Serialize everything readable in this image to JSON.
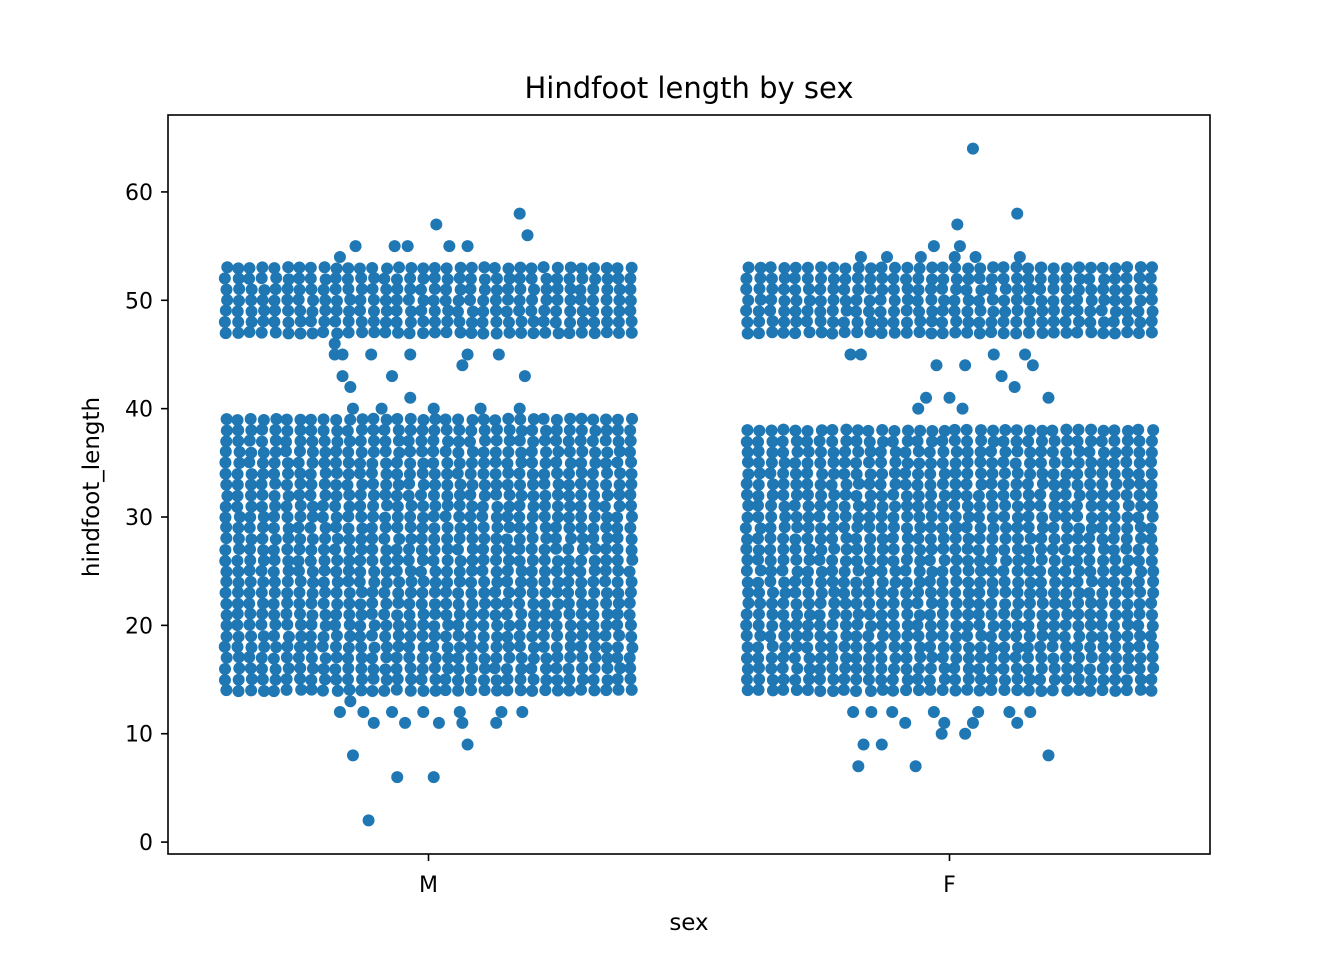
{
  "chart_data": {
    "type": "scatter",
    "subtype": "strip",
    "title": "Hindfoot length by sex",
    "xlabel": "sex",
    "ylabel": "hindfoot_length",
    "categories": [
      "M",
      "F"
    ],
    "ylim": [
      -1.1,
      67.1
    ],
    "yticks": [
      0,
      10,
      20,
      30,
      40,
      50,
      60
    ],
    "ytick_labels": [
      "0",
      "10",
      "20",
      "30",
      "40",
      "50",
      "60"
    ],
    "grid": false,
    "legend": "none",
    "series_color": "#1f77b4",
    "dense_bands": [
      {
        "category": "M",
        "y_range": [
          14,
          39
        ]
      },
      {
        "category": "M",
        "y_range": [
          47,
          53
        ]
      },
      {
        "category": "F",
        "y_range": [
          14,
          38
        ]
      },
      {
        "category": "F",
        "y_range": [
          47,
          53
        ]
      }
    ],
    "points": [
      {
        "category": "M",
        "jitter": -0.36,
        "y": 45
      },
      {
        "category": "M",
        "jitter": -0.36,
        "y": 46
      },
      {
        "category": "M",
        "jitter": -0.34,
        "y": 54
      },
      {
        "category": "M",
        "jitter": -0.28,
        "y": 55
      },
      {
        "category": "M",
        "jitter": -0.13,
        "y": 55
      },
      {
        "category": "M",
        "jitter": -0.08,
        "y": 55
      },
      {
        "category": "M",
        "jitter": 0.08,
        "y": 55
      },
      {
        "category": "M",
        "jitter": 0.15,
        "y": 55
      },
      {
        "category": "M",
        "jitter": 0.03,
        "y": 57
      },
      {
        "category": "M",
        "jitter": 0.35,
        "y": 58
      },
      {
        "category": "M",
        "jitter": 0.38,
        "y": 56
      },
      {
        "category": "M",
        "jitter": -0.33,
        "y": 45
      },
      {
        "category": "M",
        "jitter": -0.22,
        "y": 45
      },
      {
        "category": "M",
        "jitter": -0.07,
        "y": 45
      },
      {
        "category": "M",
        "jitter": 0.15,
        "y": 45
      },
      {
        "category": "M",
        "jitter": 0.27,
        "y": 45
      },
      {
        "category": "M",
        "jitter": -0.33,
        "y": 43
      },
      {
        "category": "M",
        "jitter": -0.3,
        "y": 42
      },
      {
        "category": "M",
        "jitter": -0.14,
        "y": 43
      },
      {
        "category": "M",
        "jitter": 0.13,
        "y": 44
      },
      {
        "category": "M",
        "jitter": 0.37,
        "y": 43
      },
      {
        "category": "M",
        "jitter": -0.07,
        "y": 41
      },
      {
        "category": "M",
        "jitter": -0.29,
        "y": 40
      },
      {
        "category": "M",
        "jitter": -0.18,
        "y": 40
      },
      {
        "category": "M",
        "jitter": 0.02,
        "y": 40
      },
      {
        "category": "M",
        "jitter": 0.2,
        "y": 40
      },
      {
        "category": "M",
        "jitter": 0.35,
        "y": 40
      },
      {
        "category": "M",
        "jitter": -0.3,
        "y": 13
      },
      {
        "category": "M",
        "jitter": -0.34,
        "y": 12
      },
      {
        "category": "M",
        "jitter": -0.25,
        "y": 12
      },
      {
        "category": "M",
        "jitter": -0.14,
        "y": 12
      },
      {
        "category": "M",
        "jitter": -0.02,
        "y": 12
      },
      {
        "category": "M",
        "jitter": 0.12,
        "y": 12
      },
      {
        "category": "M",
        "jitter": 0.28,
        "y": 12
      },
      {
        "category": "M",
        "jitter": 0.36,
        "y": 12
      },
      {
        "category": "M",
        "jitter": -0.21,
        "y": 11
      },
      {
        "category": "M",
        "jitter": -0.09,
        "y": 11
      },
      {
        "category": "M",
        "jitter": 0.04,
        "y": 11
      },
      {
        "category": "M",
        "jitter": 0.13,
        "y": 11
      },
      {
        "category": "M",
        "jitter": 0.26,
        "y": 11
      },
      {
        "category": "M",
        "jitter": 0.15,
        "y": 9
      },
      {
        "category": "M",
        "jitter": -0.29,
        "y": 8
      },
      {
        "category": "M",
        "jitter": -0.12,
        "y": 6
      },
      {
        "category": "M",
        "jitter": 0.02,
        "y": 6
      },
      {
        "category": "M",
        "jitter": -0.23,
        "y": 2
      },
      {
        "category": "F",
        "jitter": -0.38,
        "y": 45
      },
      {
        "category": "F",
        "jitter": -0.34,
        "y": 45
      },
      {
        "category": "F",
        "jitter": -0.34,
        "y": 54
      },
      {
        "category": "F",
        "jitter": -0.24,
        "y": 54
      },
      {
        "category": "F",
        "jitter": -0.11,
        "y": 54
      },
      {
        "category": "F",
        "jitter": -0.06,
        "y": 55
      },
      {
        "category": "F",
        "jitter": 0.02,
        "y": 54
      },
      {
        "category": "F",
        "jitter": 0.04,
        "y": 55
      },
      {
        "category": "F",
        "jitter": 0.1,
        "y": 54
      },
      {
        "category": "F",
        "jitter": 0.27,
        "y": 54
      },
      {
        "category": "F",
        "jitter": 0.35,
        "y": 53
      },
      {
        "category": "F",
        "jitter": 0.03,
        "y": 57
      },
      {
        "category": "F",
        "jitter": 0.26,
        "y": 58
      },
      {
        "category": "F",
        "jitter": 0.09,
        "y": 64
      },
      {
        "category": "F",
        "jitter": -0.05,
        "y": 44
      },
      {
        "category": "F",
        "jitter": 0.06,
        "y": 44
      },
      {
        "category": "F",
        "jitter": 0.2,
        "y": 43
      },
      {
        "category": "F",
        "jitter": 0.25,
        "y": 42
      },
      {
        "category": "F",
        "jitter": 0.32,
        "y": 44
      },
      {
        "category": "F",
        "jitter": 0.38,
        "y": 41
      },
      {
        "category": "F",
        "jitter": 0.17,
        "y": 45
      },
      {
        "category": "F",
        "jitter": 0.29,
        "y": 45
      },
      {
        "category": "F",
        "jitter": -0.09,
        "y": 41
      },
      {
        "category": "F",
        "jitter": 0.0,
        "y": 41
      },
      {
        "category": "F",
        "jitter": -0.12,
        "y": 40
      },
      {
        "category": "F",
        "jitter": 0.05,
        "y": 40
      },
      {
        "category": "F",
        "jitter": 0.02,
        "y": 29
      },
      {
        "category": "F",
        "jitter": -0.37,
        "y": 12
      },
      {
        "category": "F",
        "jitter": -0.3,
        "y": 12
      },
      {
        "category": "F",
        "jitter": -0.22,
        "y": 12
      },
      {
        "category": "F",
        "jitter": -0.06,
        "y": 12
      },
      {
        "category": "F",
        "jitter": 0.11,
        "y": 12
      },
      {
        "category": "F",
        "jitter": 0.23,
        "y": 12
      },
      {
        "category": "F",
        "jitter": 0.31,
        "y": 12
      },
      {
        "category": "F",
        "jitter": -0.17,
        "y": 11
      },
      {
        "category": "F",
        "jitter": -0.02,
        "y": 11
      },
      {
        "category": "F",
        "jitter": 0.09,
        "y": 11
      },
      {
        "category": "F",
        "jitter": 0.26,
        "y": 11
      },
      {
        "category": "F",
        "jitter": -0.03,
        "y": 10
      },
      {
        "category": "F",
        "jitter": 0.06,
        "y": 10
      },
      {
        "category": "F",
        "jitter": -0.33,
        "y": 9
      },
      {
        "category": "F",
        "jitter": -0.26,
        "y": 9
      },
      {
        "category": "F",
        "jitter": -0.35,
        "y": 7
      },
      {
        "category": "F",
        "jitter": -0.13,
        "y": 7
      },
      {
        "category": "F",
        "jitter": 0.38,
        "y": 8
      }
    ]
  }
}
